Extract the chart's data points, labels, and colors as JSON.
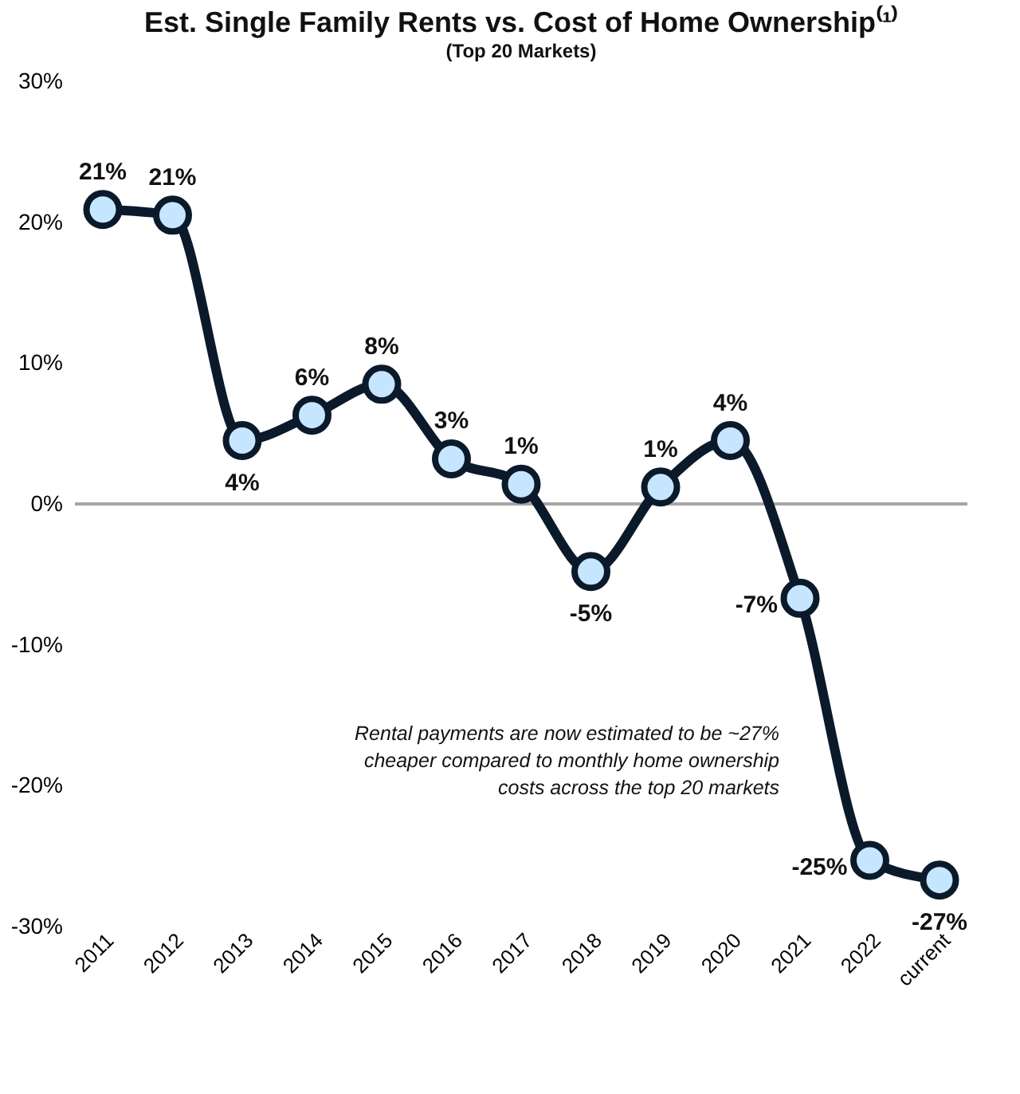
{
  "chart_data": {
    "type": "line",
    "title": "Est. Single Family Rents vs. Cost of Home Ownership⁽¹⁾",
    "subtitle": "(Top 20 Markets)",
    "categories": [
      "2011",
      "2012",
      "2013",
      "2014",
      "2015",
      "2016",
      "2017",
      "2018",
      "2019",
      "2020",
      "2021",
      "2022",
      "current"
    ],
    "series": [
      {
        "color": "#0b1a2b",
        "values": [
          20.9,
          20.5,
          4.5,
          6.3,
          8.5,
          3.2,
          1.4,
          -4.8,
          1.2,
          4.5,
          -6.7,
          -25.3,
          -26.7
        ],
        "value_labels": [
          "21%",
          "21%",
          "4%",
          "6%",
          "8%",
          "3%",
          "1%",
          "-5%",
          "1%",
          "4%",
          "-7%",
          "-25%",
          "-27%"
        ]
      }
    ],
    "ylim": [
      -30,
      30
    ],
    "yticks": [
      {
        "value": -30,
        "label": "-30%"
      },
      {
        "value": -20,
        "label": "-20%"
      },
      {
        "value": -10,
        "label": "-10%"
      },
      {
        "value": 0,
        "label": "0%"
      },
      {
        "value": 10,
        "label": "10%"
      },
      {
        "value": 20,
        "label": "20%"
      },
      {
        "value": 30,
        "label": "30%"
      }
    ],
    "ref_lines": [
      {
        "axis": "y",
        "value": 0,
        "color": "#a6a6a6"
      }
    ],
    "marker": "circle",
    "grid": false,
    "annotations": [
      "Rental payments are now estimated to be ~27%\ncheaper compared to monthly home ownership\ncosts across the top 20 markets"
    ]
  }
}
